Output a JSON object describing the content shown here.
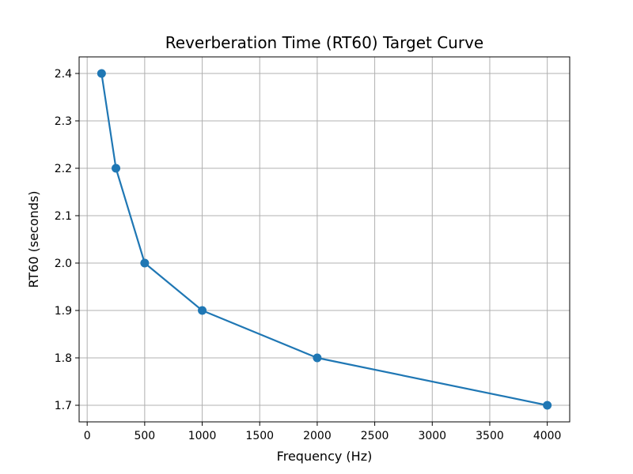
{
  "chart_data": {
    "type": "line",
    "title": "Reverberation Time (RT60) Target Curve",
    "xlabel": "Frequency (Hz)",
    "ylabel": "RT60 (seconds)",
    "x": [
      125,
      250,
      500,
      1000,
      2000,
      4000
    ],
    "series": [
      {
        "values": [
          2.4,
          2.2,
          2.0,
          1.9,
          1.8,
          1.7
        ]
      }
    ],
    "xlim": [
      -70,
      4195
    ],
    "ylim": [
      1.665,
      2.435
    ],
    "xticks": [
      0,
      500,
      1000,
      1500,
      2000,
      2500,
      3000,
      3500,
      4000
    ],
    "xtick_labels": [
      "0",
      "500",
      "1000",
      "1500",
      "2000",
      "2500",
      "3000",
      "3500",
      "4000"
    ],
    "yticks": [
      1.7,
      1.8,
      1.9,
      2.0,
      2.1,
      2.2,
      2.3,
      2.4
    ],
    "ytick_labels": [
      "1.7",
      "1.8",
      "1.9",
      "2.0",
      "2.1",
      "2.2",
      "2.3",
      "2.4"
    ],
    "grid": true,
    "line_color": "#1f77b4",
    "marker": "circle"
  }
}
